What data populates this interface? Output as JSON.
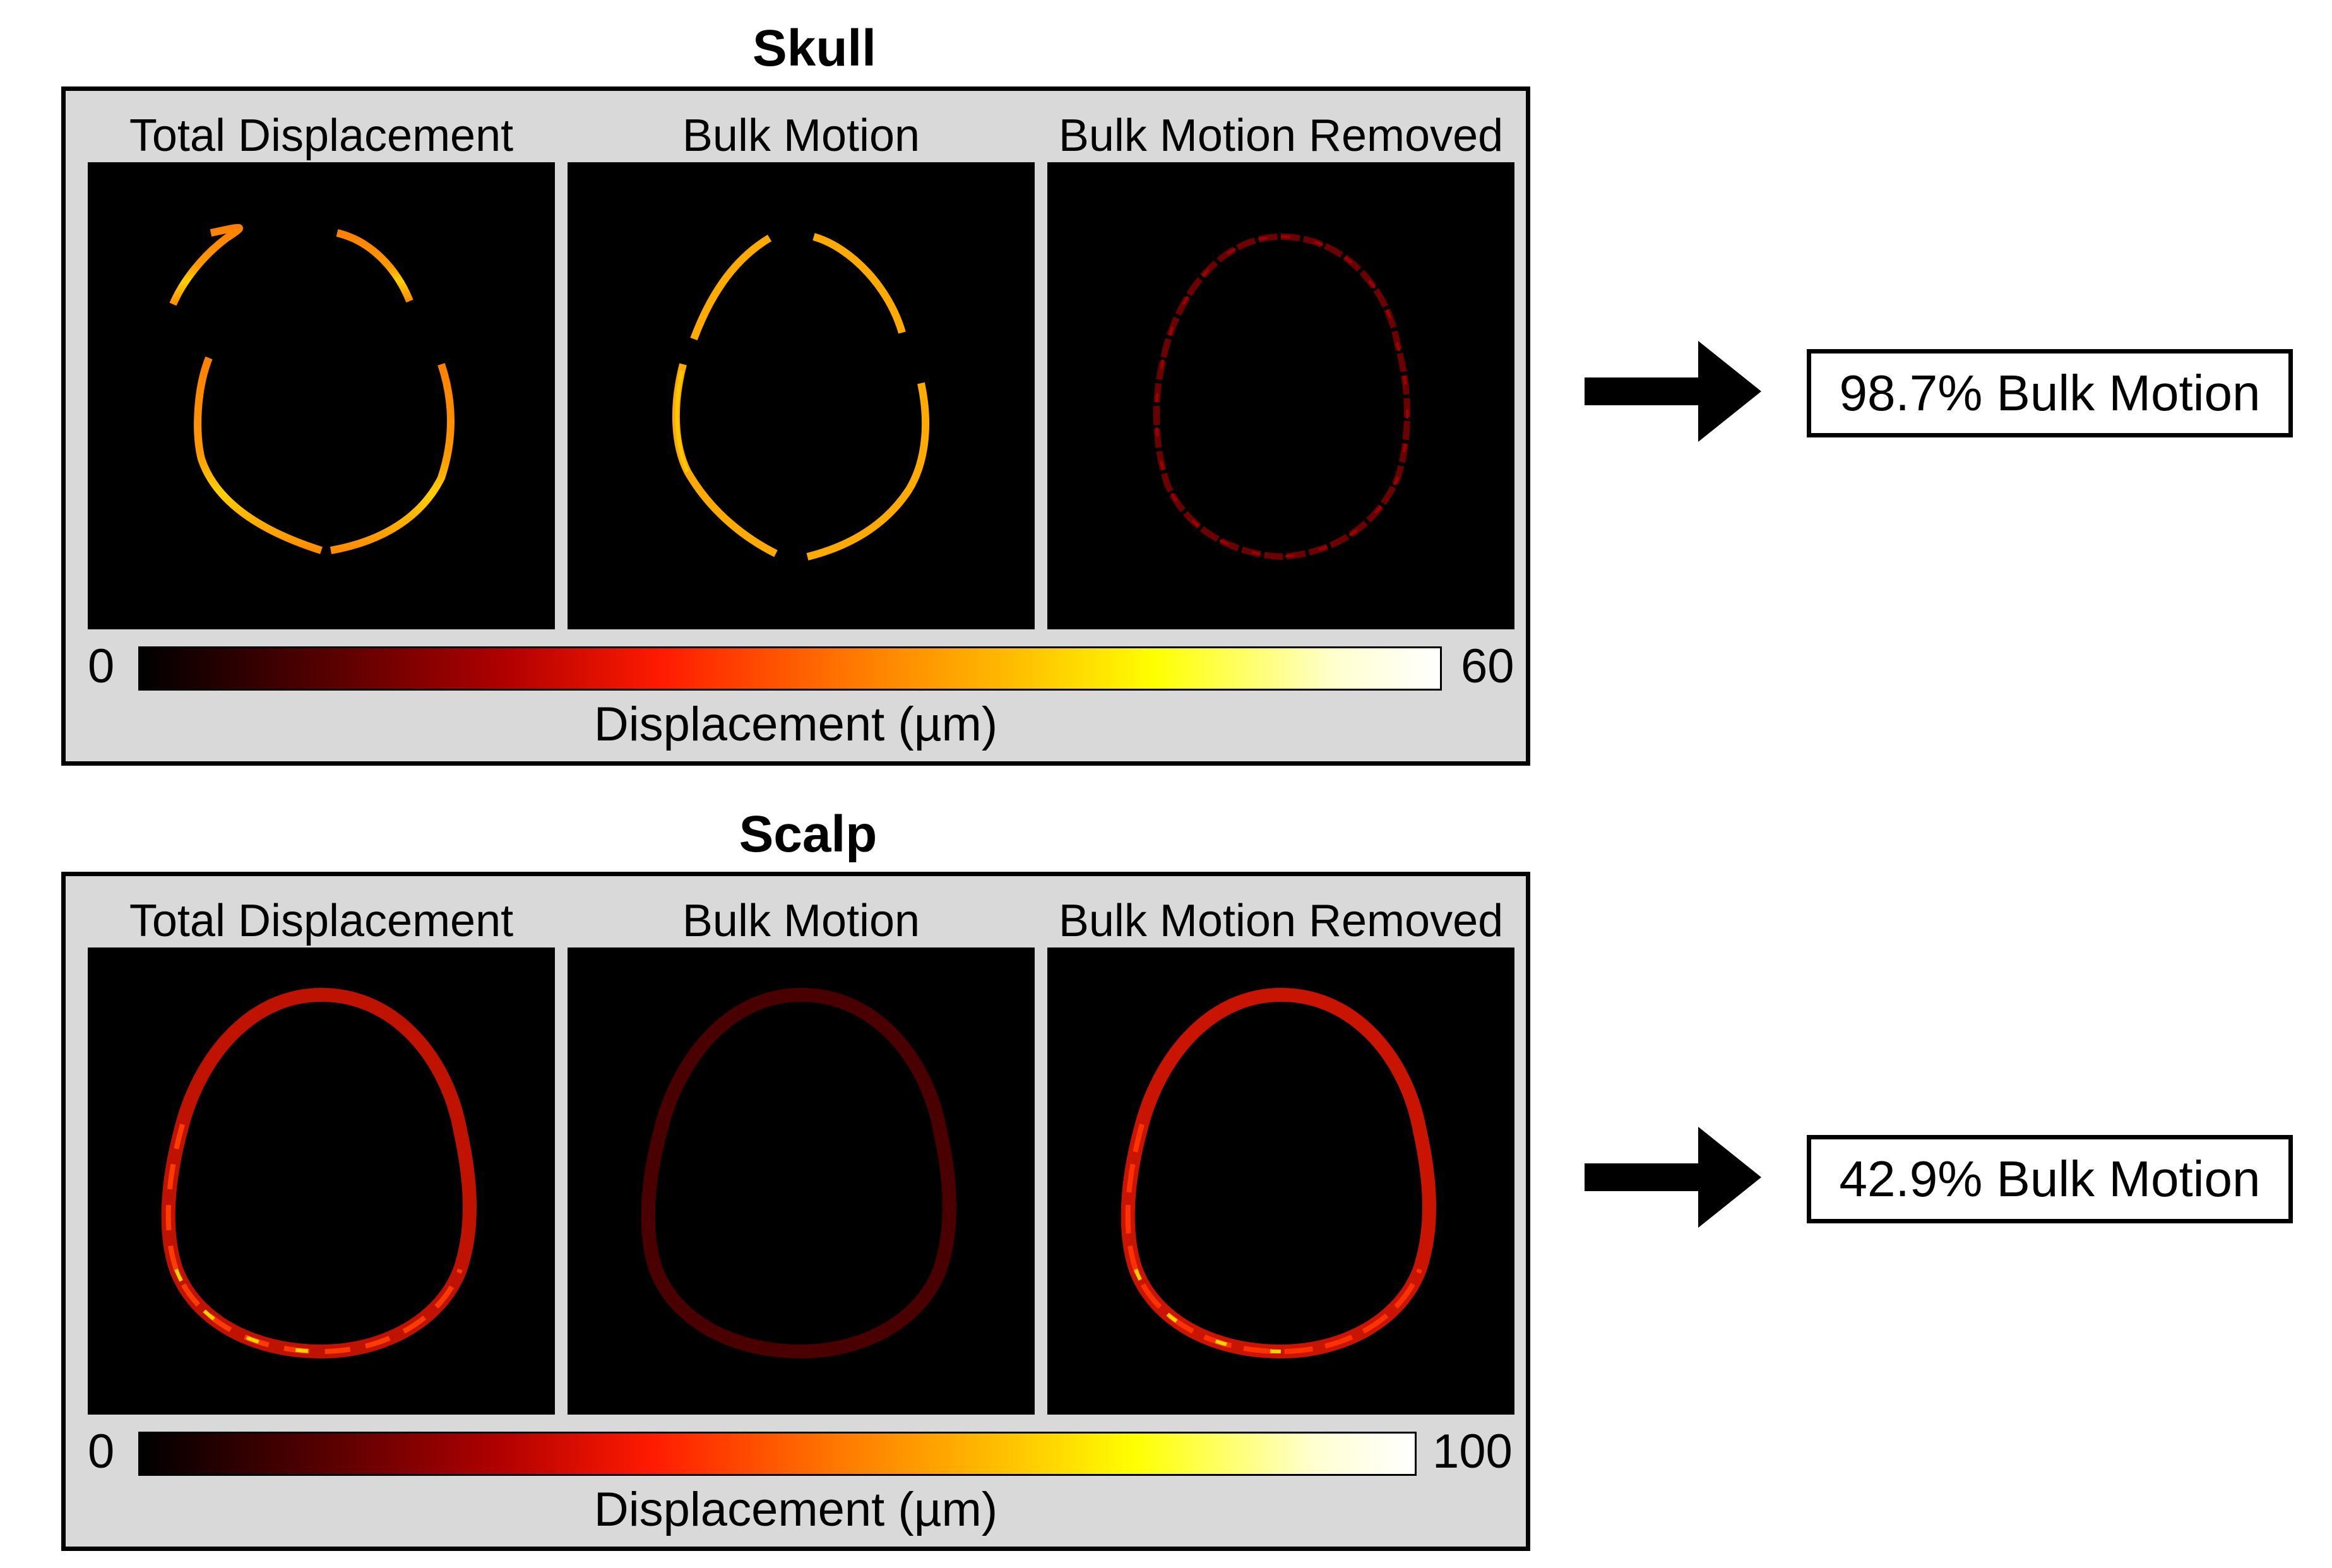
{
  "sections": [
    {
      "title": "Skull",
      "panel_labels": [
        "Total Displacement",
        "Bulk Motion",
        "Bulk Motion Removed"
      ],
      "colorbar": {
        "min": "0",
        "max": "60",
        "label": "Displacement (µm)"
      },
      "result": "98.7% Bulk Motion"
    },
    {
      "title": "Scalp",
      "panel_labels": [
        "Total Displacement",
        "Bulk Motion",
        "Bulk Motion Removed"
      ],
      "colorbar": {
        "min": "0",
        "max": "100",
        "label": "Displacement (µm)"
      },
      "result": "42.9% Bulk Motion"
    }
  ],
  "colors": {
    "skull_total": "#ff8c00",
    "skull_bulk": "#ffa500",
    "skull_removed": "#5a0000",
    "scalp_total": "#c81400",
    "scalp_bulk": "#4a0000",
    "scalp_removed": "#d01800"
  }
}
